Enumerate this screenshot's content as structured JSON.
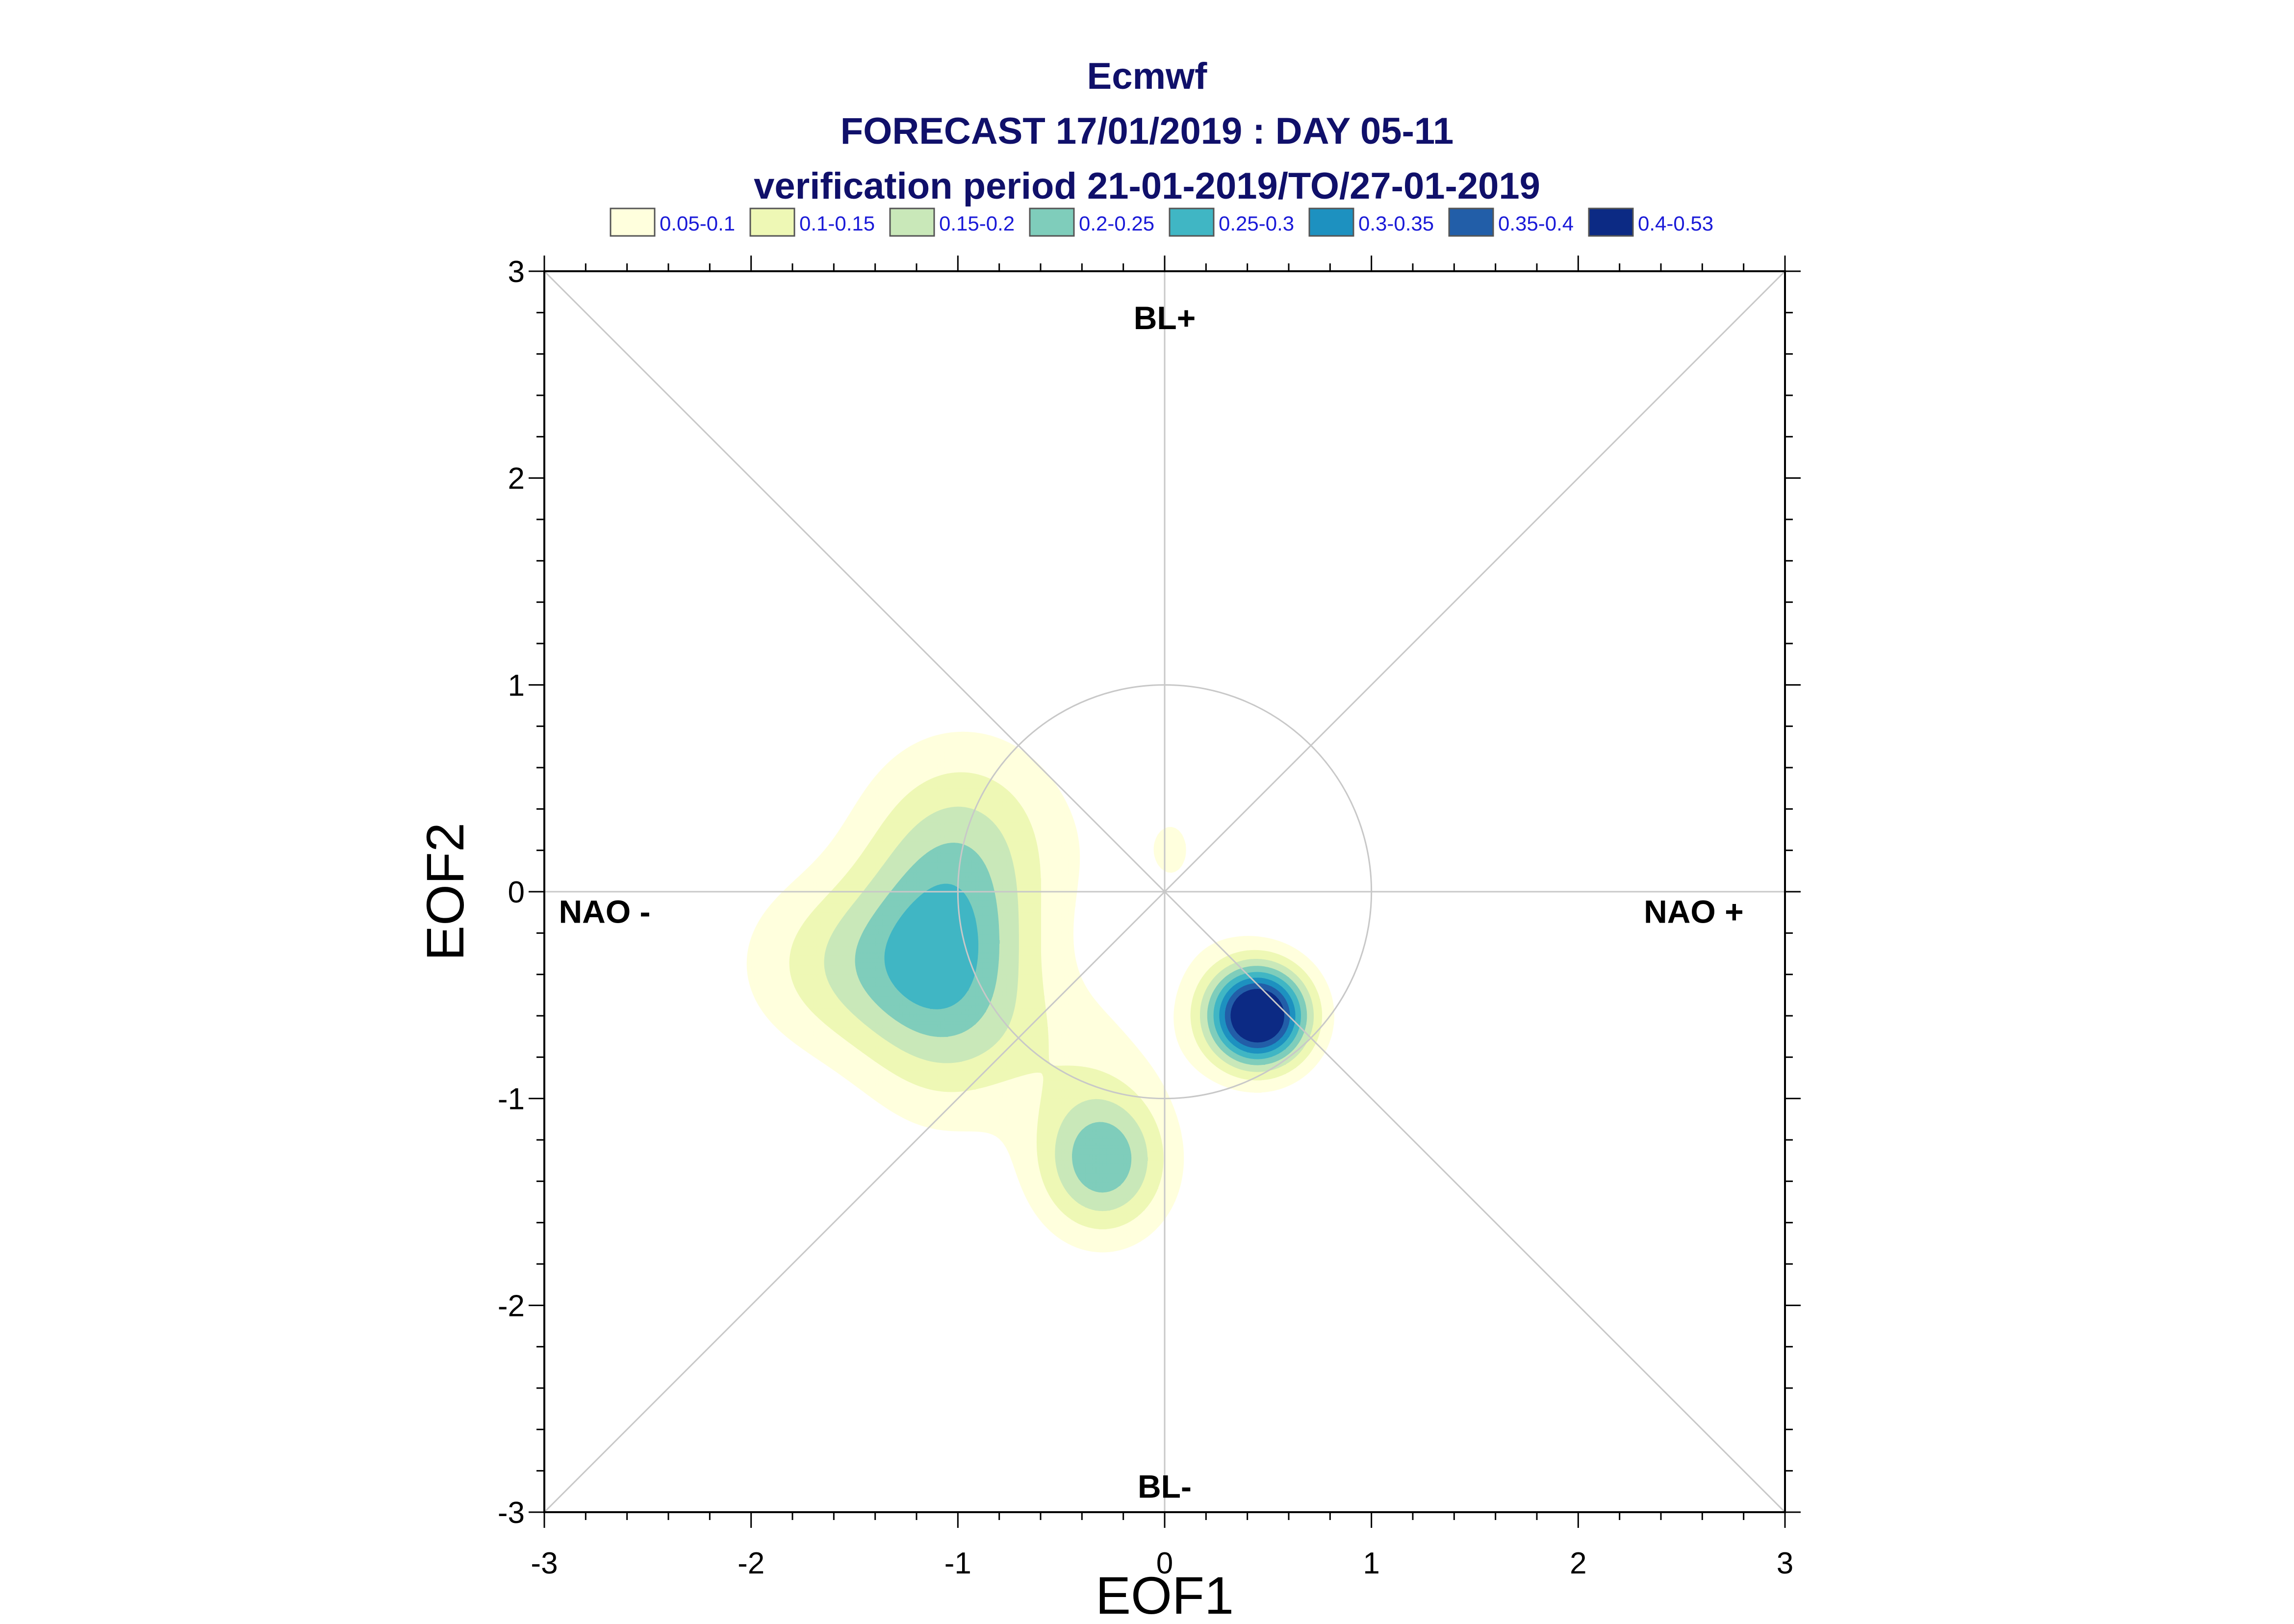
{
  "title": {
    "line1": "Ecmwf",
    "line2": "FORECAST 17/01/2019 : DAY 05-11",
    "line3": "verification period 21-01-2019/TO/27-01-2019"
  },
  "legend": [
    {
      "label": "0.05-0.1",
      "color": "#ffffdd"
    },
    {
      "label": "0.1-0.15",
      "color": "#eef8b5"
    },
    {
      "label": "0.15-0.2",
      "color": "#c9e8b9"
    },
    {
      "label": "0.2-0.25",
      "color": "#7fcdbb"
    },
    {
      "label": "0.25-0.3",
      "color": "#40b6c4"
    },
    {
      "label": "0.3-0.35",
      "color": "#1d91c0"
    },
    {
      "label": "0.35-0.4",
      "color": "#225ea8"
    },
    {
      "label": "0.4-0.53",
      "color": "#0c2a84"
    }
  ],
  "regime_labels": {
    "top": "BL+",
    "bottom": "BL-",
    "left": "NAO -",
    "right": "NAO +"
  },
  "chart_data": {
    "type": "contour",
    "xlabel": "EOF1",
    "ylabel": "EOF2",
    "xlim": [
      -3,
      3
    ],
    "ylim": [
      -3,
      3
    ],
    "xticks": [
      "-3",
      "-2",
      "-1",
      "0",
      "1",
      "2",
      "3"
    ],
    "yticks": [
      "-3",
      "-2",
      "-1",
      "0",
      "1",
      "2",
      "3"
    ],
    "reference_circle_radius": 1,
    "diagonals": true,
    "density_blobs": [
      {
        "x": -1.05,
        "y": -0.35,
        "sx": 0.3,
        "sy": 0.45,
        "amp": 0.23
      },
      {
        "x": -1.55,
        "y": -0.35,
        "sx": 0.35,
        "sy": 0.3,
        "amp": 0.12
      },
      {
        "x": -0.95,
        "y": 0.3,
        "sx": 0.35,
        "sy": 0.35,
        "amp": 0.1
      },
      {
        "x": -0.3,
        "y": -1.3,
        "sx": 0.22,
        "sy": 0.25,
        "amp": 0.24
      },
      {
        "x": 0.45,
        "y": -0.6,
        "sx": 0.17,
        "sy": 0.17,
        "amp": 0.53
      },
      {
        "x": -0.45,
        "y": -0.75,
        "sx": 0.3,
        "sy": 0.25,
        "amp": 0.05
      },
      {
        "x": 0.05,
        "y": 0.2,
        "sx": 0.25,
        "sy": 0.4,
        "amp": 0.05
      }
    ],
    "levels": [
      0.05,
      0.1,
      0.15,
      0.2,
      0.25,
      0.3,
      0.35,
      0.4,
      0.53
    ]
  }
}
